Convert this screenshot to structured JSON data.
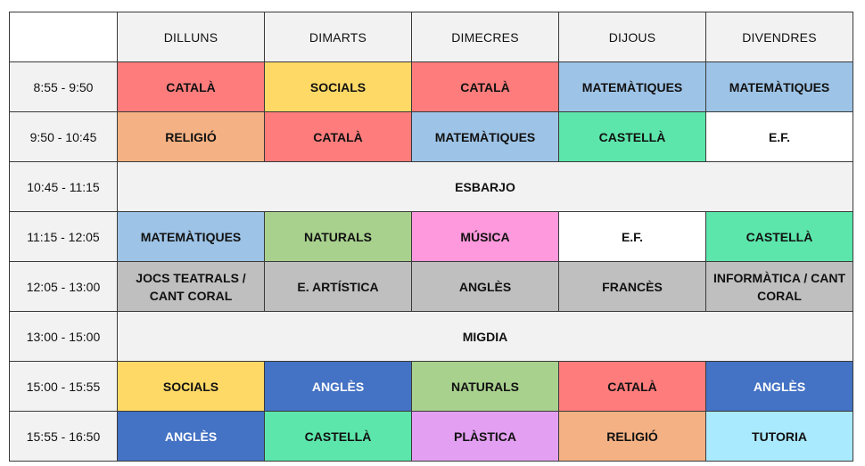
{
  "days": [
    "DILLUNS",
    "DIMARTS",
    "DIMECRES",
    "DIJOUS",
    "DIVENDRES"
  ],
  "colors": {
    "catala": "#ff7c7c",
    "socials": "#ffd966",
    "matematiques": "#9dc3e6",
    "religio": "#f4b183",
    "castella": "#5ce6ab",
    "ef": "#ffffff",
    "naturals": "#a9d18e",
    "musica": "#ff99dd",
    "gray": "#bfbfbf",
    "angles": "#4472c4",
    "plastica": "#e39ff2",
    "tutoria": "#a9eaff",
    "break": "#f2f2f2"
  },
  "rows": [
    {
      "time": "8:55 - 9:50",
      "cells": [
        {
          "text": "CATALÀ",
          "color": "#ff7c7c"
        },
        {
          "text": "SOCIALS",
          "color": "#ffd966"
        },
        {
          "text": "CATALÀ",
          "color": "#ff7c7c"
        },
        {
          "text": "MATEMÀTIQUES",
          "color": "#9dc3e6"
        },
        {
          "text": "MATEMÀTIQUES",
          "color": "#9dc3e6"
        }
      ]
    },
    {
      "time": "9:50 - 10:45",
      "cells": [
        {
          "text": "RELIGIÓ",
          "color": "#f4b183"
        },
        {
          "text": "CATALÀ",
          "color": "#ff7c7c"
        },
        {
          "text": "MATEMÀTIQUES",
          "color": "#9dc3e6"
        },
        {
          "text": "CASTELLÀ",
          "color": "#5ce6ab"
        },
        {
          "text": "E.F.",
          "color": "#ffffff"
        }
      ]
    },
    {
      "time": "10:45 - 11:15",
      "break": "ESBARJO"
    },
    {
      "time": "11:15 - 12:05",
      "cells": [
        {
          "text": "MATEMÀTIQUES",
          "color": "#9dc3e6"
        },
        {
          "text": "NATURALS",
          "color": "#a9d18e"
        },
        {
          "text": "MÚSICA",
          "color": "#ff99dd"
        },
        {
          "text": "E.F.",
          "color": "#ffffff"
        },
        {
          "text": "CASTELLÀ",
          "color": "#5ce6ab"
        }
      ]
    },
    {
      "time": "12:05 - 13:00",
      "cells": [
        {
          "text": "JOCS TEATRALS / CANT CORAL",
          "color": "#bfbfbf"
        },
        {
          "text": "E. ARTÍSTICA",
          "color": "#bfbfbf"
        },
        {
          "text": "ANGLÈS",
          "color": "#bfbfbf"
        },
        {
          "text": "FRANCÈS",
          "color": "#bfbfbf"
        },
        {
          "text": "INFORMÀTICA / CANT CORAL",
          "color": "#bfbfbf"
        }
      ]
    },
    {
      "time": "13:00 - 15:00",
      "break": "MIGDIA"
    },
    {
      "time": "15:00 - 15:55",
      "cells": [
        {
          "text": "SOCIALS",
          "color": "#ffd966"
        },
        {
          "text": "ANGLÈS",
          "color": "#4472c4",
          "light": true
        },
        {
          "text": "NATURALS",
          "color": "#a9d18e"
        },
        {
          "text": "CATALÀ",
          "color": "#ff7c7c"
        },
        {
          "text": "ANGLÈS",
          "color": "#4472c4",
          "light": true
        }
      ]
    },
    {
      "time": "15:55 - 16:50",
      "cells": [
        {
          "text": "ANGLÈS",
          "color": "#4472c4",
          "light": true
        },
        {
          "text": "CASTELLÀ",
          "color": "#5ce6ab"
        },
        {
          "text": "PLÀSTICA",
          "color": "#e39ff2"
        },
        {
          "text": "RELIGIÓ",
          "color": "#f4b183"
        },
        {
          "text": "TUTORIA",
          "color": "#a9eaff"
        }
      ]
    }
  ]
}
